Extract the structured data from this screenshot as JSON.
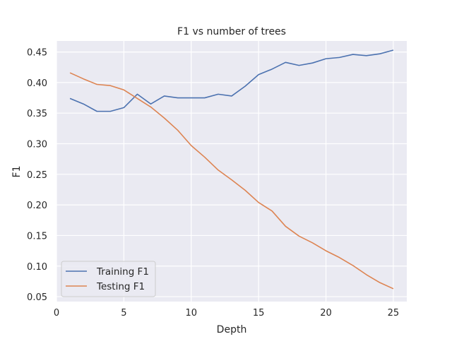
{
  "chart_data": {
    "type": "line",
    "title": "F1 vs number of trees",
    "xlabel": "Depth",
    "ylabel": "F1",
    "xlim": [
      0,
      26
    ],
    "ylim": [
      0.042,
      0.468
    ],
    "xticks": [
      0,
      5,
      10,
      15,
      20,
      25
    ],
    "yticks": [
      0.05,
      0.1,
      0.15,
      0.2,
      0.25,
      0.3,
      0.35,
      0.4,
      0.45
    ],
    "xtick_labels": [
      "0",
      "5",
      "10",
      "15",
      "20",
      "25"
    ],
    "ytick_labels": [
      "0.05",
      "0.10",
      "0.15",
      "0.20",
      "0.25",
      "0.30",
      "0.35",
      "0.40",
      "0.45"
    ],
    "grid": true,
    "legend_position": "bottom-left",
    "x": [
      1,
      2,
      3,
      4,
      5,
      6,
      7,
      8,
      9,
      10,
      11,
      12,
      13,
      14,
      15,
      16,
      17,
      18,
      19,
      20,
      21,
      22,
      23,
      24,
      25
    ],
    "series": [
      {
        "name": "Training F1",
        "color": "#4c72b0",
        "values": [
          0.374,
          0.365,
          0.353,
          0.353,
          0.359,
          0.381,
          0.365,
          0.378,
          0.375,
          0.375,
          0.375,
          0.381,
          0.378,
          0.394,
          0.413,
          0.422,
          0.433,
          0.428,
          0.432,
          0.439,
          0.441,
          0.446,
          0.444,
          0.447,
          0.453
        ]
      },
      {
        "name": "Testing F1",
        "color": "#dd8452",
        "values": [
          0.416,
          0.406,
          0.397,
          0.395,
          0.388,
          0.374,
          0.36,
          0.342,
          0.322,
          0.297,
          0.278,
          0.257,
          0.241,
          0.224,
          0.204,
          0.19,
          0.165,
          0.149,
          0.138,
          0.125,
          0.114,
          0.101,
          0.086,
          0.073,
          0.063
        ]
      }
    ]
  }
}
